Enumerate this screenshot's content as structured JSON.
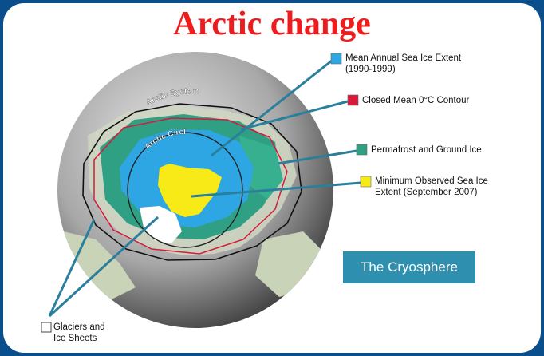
{
  "title": "Arctic change",
  "legend": [
    {
      "line1": "Mean Annual Sea Ice Extent",
      "line2": "(1990-1999)",
      "color": "#2ea6e4"
    },
    {
      "line1": "Closed Mean 0°C Contour",
      "line2": "",
      "color": "#d8193b"
    },
    {
      "line1": "Permafrost and Ground Ice",
      "line2": "",
      "color": "#2fa083"
    },
    {
      "line1": "Minimum Observed Sea Ice",
      "line2": "Extent (September 2007)",
      "color": "#f7ea17"
    }
  ],
  "glaciers": {
    "line1": "Glaciers and",
    "line2": "Ice Sheets",
    "color": "#ffffff"
  },
  "map_labels": {
    "arctic_system": "Arctic System",
    "arctic_circle": "Arctic Circle"
  },
  "cryosphere_label": "The Cryosphere"
}
